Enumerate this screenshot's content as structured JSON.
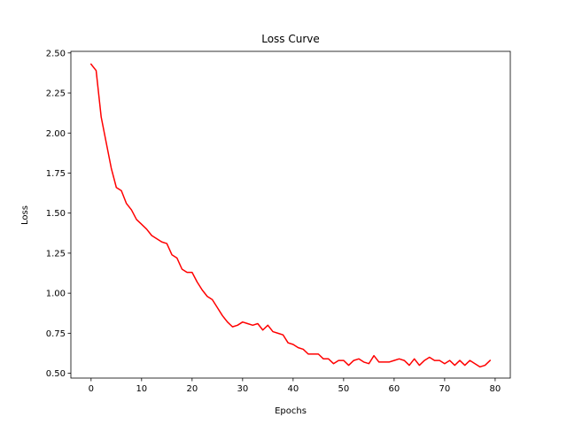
{
  "chart_data": {
    "type": "line",
    "title": "Loss Curve",
    "xlabel": "Epochs",
    "ylabel": "Loss",
    "xlim": [
      -4,
      83
    ],
    "ylim": [
      0.47,
      2.51
    ],
    "xticks": [
      0,
      10,
      20,
      30,
      40,
      50,
      60,
      70,
      80
    ],
    "yticks": [
      0.5,
      0.75,
      1.0,
      1.25,
      1.5,
      1.75,
      2.0,
      2.25,
      2.5
    ],
    "ytick_labels": [
      "0.50",
      "0.75",
      "1.00",
      "1.25",
      "1.50",
      "1.75",
      "2.00",
      "2.25",
      "2.50"
    ],
    "grid": false,
    "line_color": "#ff0000",
    "series": [
      {
        "x": [
          0,
          1,
          2,
          3,
          4,
          5,
          6,
          7,
          8,
          9,
          10,
          11,
          12,
          13,
          14,
          15,
          16,
          17,
          18,
          19,
          20,
          21,
          22,
          23,
          24,
          25,
          26,
          27,
          28,
          29,
          30,
          31,
          32,
          33,
          34,
          35,
          36,
          37,
          38,
          39,
          40,
          41,
          42,
          43,
          44,
          45,
          46,
          47,
          48,
          49,
          50,
          51,
          52,
          53,
          54,
          55,
          56,
          57,
          58,
          59,
          60,
          61,
          62,
          63,
          64,
          65,
          66,
          67,
          68,
          69,
          70,
          71,
          72,
          73,
          74,
          75,
          76,
          77,
          78,
          79
        ],
        "values": [
          2.43,
          2.39,
          2.1,
          1.94,
          1.78,
          1.66,
          1.64,
          1.56,
          1.52,
          1.46,
          1.43,
          1.4,
          1.36,
          1.34,
          1.32,
          1.31,
          1.24,
          1.22,
          1.15,
          1.13,
          1.13,
          1.07,
          1.02,
          0.98,
          0.96,
          0.91,
          0.86,
          0.82,
          0.79,
          0.8,
          0.82,
          0.81,
          0.8,
          0.81,
          0.77,
          0.8,
          0.76,
          0.75,
          0.74,
          0.69,
          0.68,
          0.66,
          0.65,
          0.62,
          0.62,
          0.62,
          0.59,
          0.59,
          0.56,
          0.58,
          0.58,
          0.55,
          0.58,
          0.59,
          0.57,
          0.56,
          0.61,
          0.57,
          0.57,
          0.57,
          0.58,
          0.59,
          0.58,
          0.55,
          0.59,
          0.55,
          0.58,
          0.6,
          0.58,
          0.58,
          0.56,
          0.58,
          0.55,
          0.58,
          0.55,
          0.58,
          0.56,
          0.54,
          0.55,
          0.58
        ]
      }
    ]
  }
}
